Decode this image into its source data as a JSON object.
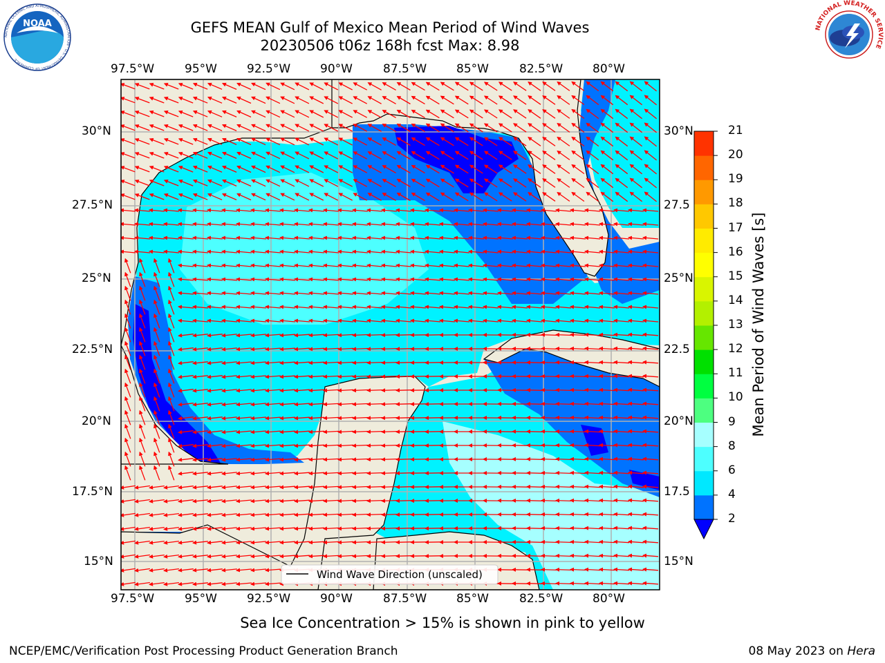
{
  "title": {
    "line1": "GEFS MEAN Gulf of Mexico Mean Period of Wind Waves",
    "line2": "20230506 t06z 168h fcst   Max: 8.98"
  },
  "logos": {
    "noaa": {
      "icon": "noaa-logo",
      "text": "NOAA",
      "ring_text": "NATIONAL OCEANIC AND ATMOSPHERIC ADMINISTRATION · U.S. DEPARTMENT OF COMMERCE"
    },
    "nws": {
      "icon": "nws-logo",
      "ring_text": "NATIONAL WEATHER SERVICE"
    }
  },
  "map": {
    "lon_ticks": [
      "97.5°W",
      "95°W",
      "92.5°W",
      "90°W",
      "87.5°W",
      "85°W",
      "82.5°W",
      "80°W"
    ],
    "lat_ticks_left": [
      "30°N",
      "27.5°N",
      "25°N",
      "22.5°N",
      "20°N",
      "17.5°N",
      "15°N"
    ],
    "lat_ticks_right": [
      "30°N",
      "27.5",
      "25°N",
      "22.5",
      "20°N",
      "17.5",
      "15°N"
    ],
    "extent": {
      "lon_min": -98.0,
      "lon_max": -78.2,
      "lat_min": 14.0,
      "lat_max": 31.8
    },
    "legend_label": "Wind Wave Direction (unscaled)",
    "colors": {
      "land": "#efecdc",
      "arrows": "#ff0000",
      "grid": "#b0b0b0",
      "coast": "#000000"
    }
  },
  "colorbar": {
    "title": "Mean Period of Wind Waves [s]",
    "labels": [
      "2",
      "4",
      "6",
      "8",
      "9",
      "10",
      "11",
      "12",
      "13",
      "14",
      "15",
      "16",
      "17",
      "18",
      "19",
      "20",
      "21"
    ],
    "colors": [
      "#0073ff",
      "#00e8ff",
      "#4dffff",
      "#a6ffff",
      "#4dff80",
      "#00ff40",
      "#00e000",
      "#66e600",
      "#b3f000",
      "#d9f500",
      "#ffff00",
      "#ffeb00",
      "#ffc800",
      "#ff9900",
      "#ff6600",
      "#ff3300",
      "#ff0000"
    ],
    "under_color": "#0000ff"
  },
  "caption": "Sea Ice Concentration > 15% is shown in pink to yellow",
  "footer": {
    "credit": "NCEP/EMC/Verification Post Processing Product Generation Branch",
    "date": "08 May 2023 on",
    "machine": "Hera"
  }
}
